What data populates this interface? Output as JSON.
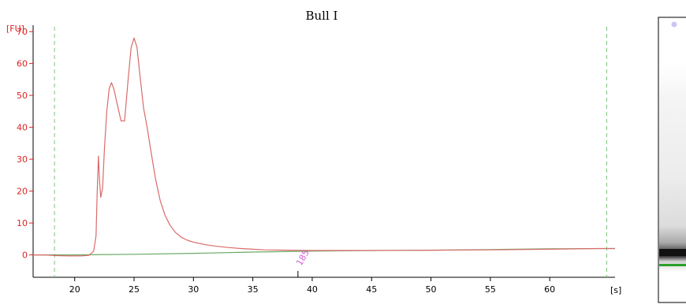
{
  "chart_data": {
    "type": "line",
    "title": "Bull I",
    "ylabel": "[FU]",
    "xlabel": "[s]",
    "xlim": [
      16.5,
      65.5
    ],
    "ylim": [
      -7,
      72
    ],
    "x_ticks": [
      20,
      25,
      30,
      35,
      40,
      45,
      50,
      55,
      60
    ],
    "y_ticks": [
      0,
      10,
      20,
      30,
      40,
      50,
      60,
      70
    ],
    "grid": false,
    "markers": [
      18.3,
      64.8
    ],
    "annotation": {
      "text": "185",
      "x": 38.8
    },
    "series": [
      {
        "color": "#d96b6b",
        "x": [
          16.5,
          17.5,
          18.5,
          19.5,
          20.5,
          21.2,
          21.6,
          21.8,
          21.9,
          22.0,
          22.1,
          22.2,
          22.35,
          22.5,
          22.7,
          22.9,
          23.1,
          23.3,
          23.6,
          23.9,
          24.2,
          24.5,
          24.75,
          25.0,
          25.25,
          25.5,
          25.8,
          26.1,
          26.4,
          26.8,
          27.2,
          27.6,
          28.0,
          28.5,
          29.0,
          29.5,
          30.0,
          31.0,
          32.0,
          33.0,
          34.0,
          35.0,
          36.0,
          38.0,
          40.0,
          45.0,
          50.0,
          55.0,
          60.0,
          64.0,
          65.5
        ],
        "y": [
          0,
          0,
          -0.2,
          -0.3,
          -0.3,
          -0.1,
          1.2,
          6,
          20,
          31,
          23,
          18,
          21,
          33,
          45,
          52,
          54,
          52,
          47,
          42,
          42,
          55,
          65,
          68,
          65,
          56,
          46,
          40,
          33,
          24,
          17,
          12.5,
          9.5,
          7,
          5.5,
          4.6,
          4,
          3.2,
          2.7,
          2.3,
          2,
          1.8,
          1.6,
          1.5,
          1.4,
          1.4,
          1.5,
          1.6,
          1.8,
          2.0,
          2.0
        ]
      },
      {
        "color": "#6aaa64",
        "x": [
          16.5,
          20.0,
          25.0,
          30.0,
          35.0,
          40.0,
          45.0,
          50.0,
          55.0,
          60.0,
          65.5
        ],
        "y": [
          0,
          0,
          0.2,
          0.5,
          0.9,
          1.2,
          1.4,
          1.5,
          1.7,
          1.9,
          2.0
        ]
      }
    ]
  },
  "gel": {
    "dot_color": "#c8c8f0",
    "band_dark": "#111111",
    "lower_marker_color": "#2aa02a"
  }
}
